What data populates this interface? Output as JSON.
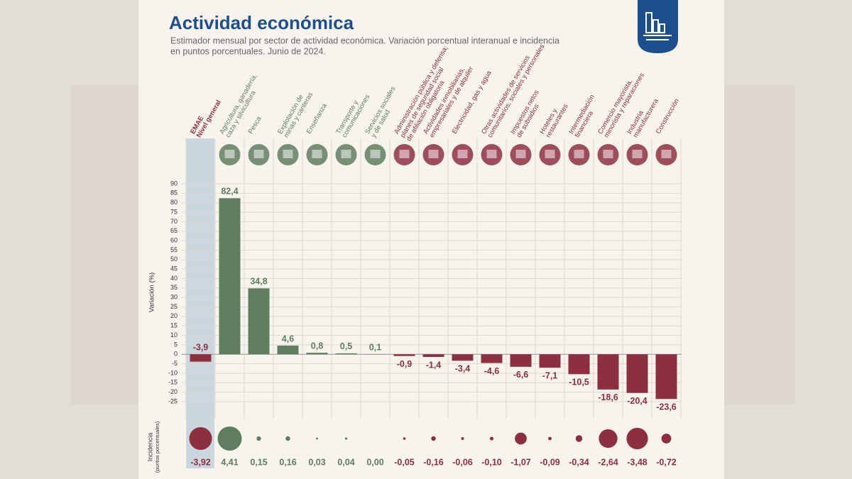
{
  "chart_data": {
    "type": "bar",
    "title": "Actividad económica",
    "subtitle": [
      "Estimador mensual por sector de actividad económica. Variación porcentual interanual e incidencia",
      "en puntos porcentuales. Junio de 2024."
    ],
    "y_label": "Variación (%)",
    "incidence_label": [
      "Incidencia",
      "(puntos porcentuales)"
    ],
    "categories": [
      "EMAE\nNivel general",
      "Agricultura, ganadería,\ncaza y silvicultura",
      "Pesca",
      "Explotación de\nminas y canteras",
      "Enseñanza",
      "Transporte y\ncomunicaciones",
      "Servicios sociales\ny de salud",
      "Administración pública y defensa;\nplanes de seguridad social\nde afiliación obligatoria",
      "Actividades inmobiliarias,\nempresariales y de alquiler",
      "Electricidad, gas y agua",
      "Otras actividades de servicios\ncomunitarios, sociales y personales",
      "Impuestos netos\nde subsidios",
      "Hoteles y\nrestaurantes",
      "Intermediación\nfinanciera",
      "Comercio mayorista,\nminorista y reparaciones",
      "Industria\nmanufacturera",
      "Construcción"
    ],
    "values": [
      -3.9,
      82.4,
      34.8,
      4.6,
      0.8,
      0.5,
      0.1,
      -0.9,
      -1.4,
      -3.4,
      -4.6,
      -6.6,
      -7.1,
      -10.5,
      -18.6,
      -20.4,
      -23.6
    ],
    "value_labels": [
      "-3,9",
      "82,4",
      "34,8",
      "4,6",
      "0,8",
      "0,5",
      "0,1",
      "-0,9",
      "-1,4",
      "-3,4",
      "-4,6",
      "-6,6",
      "-7,1",
      "-10,5",
      "-18,6",
      "-20,4",
      "-23,6"
    ],
    "incidence": [
      -3.92,
      4.41,
      0.15,
      0.16,
      0.03,
      0.04,
      0.0,
      -0.05,
      -0.16,
      -0.06,
      -0.1,
      -1.07,
      -0.09,
      -0.34,
      -2.64,
      -3.48,
      -0.72
    ],
    "incidence_labels": [
      "-3,92",
      "4,41",
      "0,15",
      "0,16",
      "0,03",
      "0,04",
      "0,00",
      "-0,05",
      "-0,16",
      "-0,06",
      "-0,10",
      "-1,07",
      "-0,09",
      "-0,34",
      "-2,64",
      "-3,48",
      "-0,72"
    ],
    "positive_color": "#5f7d5f",
    "negative_color": "#8e2f40",
    "ylim": [
      -25,
      90
    ],
    "yticks": [
      90,
      85,
      80,
      75,
      70,
      65,
      60,
      55,
      50,
      45,
      40,
      35,
      30,
      25,
      20,
      15,
      10,
      5,
      0,
      -5,
      -10,
      -15,
      -20,
      -25
    ],
    "grid": true
  }
}
